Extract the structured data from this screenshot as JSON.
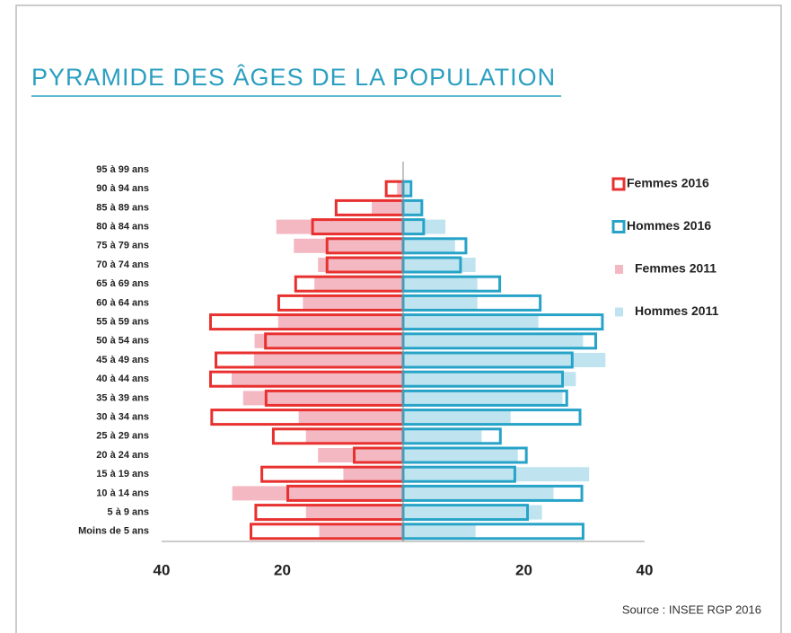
{
  "chart_data": {
    "type": "pyramid",
    "title": "PYRAMIDE DES ÂGES DE LA POPULATION",
    "source": "Source : INSEE RGP 2016",
    "categories": [
      "95 à 99 ans",
      "90 à 94 ans",
      "85 à 89 ans",
      "80 à 84 ans",
      "75 à 79 ans",
      "70 à 74 ans",
      "65 à 69 ans",
      "60 à 64 ans",
      "55 à 59 ans",
      "50 à 54 ans",
      "45 à 49 ans",
      "40 à 44 ans",
      "35 à 39 ans",
      "30 à 34 ans",
      "25 à 29 ans",
      "20 à 24 ans",
      "15 à 19 ans",
      "10 à 14 ans",
      "5 à 9 ans",
      "Moins de 5 ans"
    ],
    "series": [
      {
        "name": "Femmes 2016",
        "color": "#e8312f",
        "side": "left",
        "style": "outline",
        "values": [
          0,
          2.8,
          11.1,
          15.0,
          12.6,
          12.6,
          17.8,
          20.6,
          31.9,
          22.8,
          31.0,
          31.9,
          22.7,
          31.7,
          21.5,
          8.1,
          23.4,
          19.1,
          24.4,
          25.2
        ]
      },
      {
        "name": "Hommes 2016",
        "color": "#27a3c8",
        "side": "right",
        "style": "outline",
        "values": [
          0,
          1.3,
          3.1,
          3.4,
          10.4,
          9.5,
          16.0,
          22.7,
          33.0,
          31.9,
          28.0,
          26.4,
          27.1,
          29.3,
          16.1,
          20.4,
          18.5,
          29.6,
          20.6,
          29.8
        ]
      },
      {
        "name": "Femmes 2011",
        "color": "#f4b8c3",
        "side": "left",
        "style": "fill",
        "values": [
          0,
          1,
          5.2,
          21.0,
          18.1,
          14.1,
          14.7,
          16.6,
          20.7,
          24.6,
          24.7,
          28.4,
          26.5,
          17.3,
          16.1,
          14.1,
          9.9,
          28.3,
          16.1,
          13.9
        ]
      },
      {
        "name": "Hommes 2011",
        "color": "#bfe4ef",
        "side": "right",
        "style": "fill",
        "values": [
          0,
          1,
          3,
          7.0,
          8.6,
          12.0,
          12.3,
          12.3,
          22.4,
          29.8,
          33.5,
          28.6,
          26.4,
          17.8,
          13.0,
          19.0,
          30.8,
          24.9,
          23.0,
          12.0
        ]
      }
    ],
    "xlim": [
      -40,
      40
    ],
    "xticks": [
      {
        "value": -40,
        "label": "40"
      },
      {
        "value": -20,
        "label": "20"
      },
      20,
      40
    ],
    "legend": "right"
  }
}
